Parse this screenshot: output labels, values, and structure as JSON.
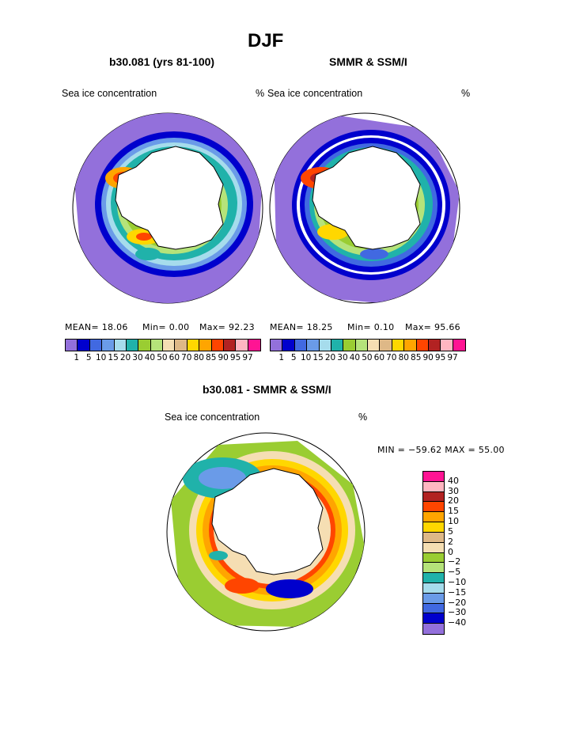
{
  "page": {
    "title": "DJF",
    "left_title": "b30.081 (yrs 81-100)",
    "right_title": "SMMR & SSM/I",
    "bottom_title": "b30.081 - SMMR & SSM/I"
  },
  "panels": {
    "left": {
      "var_label": "Sea ice concentration",
      "stats": {
        "mean": "MEAN=   18.06",
        "min": "Min=    0.00",
        "max": "Max=   92.23"
      }
    },
    "right": {
      "unit_left": "%",
      "var_label": "Sea ice concentration",
      "unit_right": "%",
      "stats": {
        "mean": "MEAN=   18.25",
        "min": "Min=    0.10",
        "max": "Max=   95.66"
      }
    },
    "diff": {
      "var_label": "Sea ice concentration",
      "unit": "%",
      "minmax": "MIN = −59.62  MAX =   55.00"
    }
  },
  "colorbar_concentration": {
    "colors": [
      "#9370db",
      "#0000cd",
      "#4169e1",
      "#6a9be8",
      "#a6dcec",
      "#20b2aa",
      "#9acd32",
      "#b5e37a",
      "#f5deb3",
      "#deb887",
      "#ffd700",
      "#ffa500",
      "#ff4500",
      "#b22222",
      "#ffb6c1",
      "#ff1493"
    ],
    "tick_labels": [
      "1",
      "5",
      "10",
      "15",
      "20",
      "30",
      "40",
      "50",
      "60",
      "70",
      "80",
      "85",
      "90",
      "95",
      "97"
    ]
  },
  "colorbar_difference": {
    "colors": [
      "#ff1493",
      "#ffb6c1",
      "#b22222",
      "#ff4500",
      "#ffa500",
      "#ffd700",
      "#deb887",
      "#f5deb3",
      "#9acd32",
      "#b5e37a",
      "#20b2aa",
      "#a6dcec",
      "#6a9be8",
      "#4169e1",
      "#0000cd",
      "#9370db"
    ],
    "tick_labels": [
      "40",
      "30",
      "20",
      "15",
      "10",
      "5",
      "2",
      "0",
      "−2",
      "−5",
      "−10",
      "−15",
      "−20",
      "−30",
      "−40"
    ]
  },
  "map": {
    "projection": "south polar stereographic",
    "region": "Antarctica / Southern Ocean",
    "land_fill": "#ffffff",
    "coastline_color": "#000000"
  }
}
